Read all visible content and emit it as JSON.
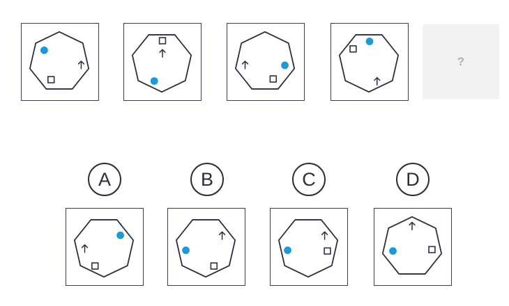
{
  "puzzle": {
    "placeholder_text": "?",
    "sequence": [
      {
        "id": "seq-1",
        "rotation": 0,
        "dot": [
          63,
          72
        ],
        "square": [
          73,
          115
        ],
        "arrow": [
          117,
          93
        ]
      },
      {
        "id": "seq-2",
        "rotation": 180,
        "dot": [
          221,
          117
        ],
        "square": [
          233,
          58
        ],
        "arrow": [
          233,
          76
        ]
      },
      {
        "id": "seq-3",
        "rotation": 0,
        "dot": [
          409,
          94
        ],
        "square": [
          392,
          114
        ],
        "arrow": [
          351,
          93
        ]
      },
      {
        "id": "seq-4",
        "rotation": 180,
        "dot": [
          530,
          59
        ],
        "square": [
          506,
          70
        ],
        "arrow": [
          541,
          117
        ]
      }
    ],
    "options": [
      {
        "label": "A",
        "rotation": 180,
        "dot": [
          173,
          338
        ],
        "square": [
          136,
          383
        ],
        "arrow": [
          121,
          357
        ]
      },
      {
        "label": "B",
        "rotation": 180,
        "dot": [
          266,
          360
        ],
        "square": [
          307,
          383
        ],
        "arrow": [
          319,
          338
        ]
      },
      {
        "label": "C",
        "rotation": 180,
        "dot": [
          412,
          360
        ],
        "square": [
          470,
          361
        ],
        "arrow": [
          466,
          338
        ]
      },
      {
        "label": "D",
        "rotation": 0,
        "dot": [
          563,
          361
        ],
        "square": [
          620,
          359
        ],
        "arrow": [
          591,
          324
        ]
      }
    ],
    "colors": {
      "stroke": "#2b2b3b",
      "dot": "#1a9bd7"
    }
  }
}
